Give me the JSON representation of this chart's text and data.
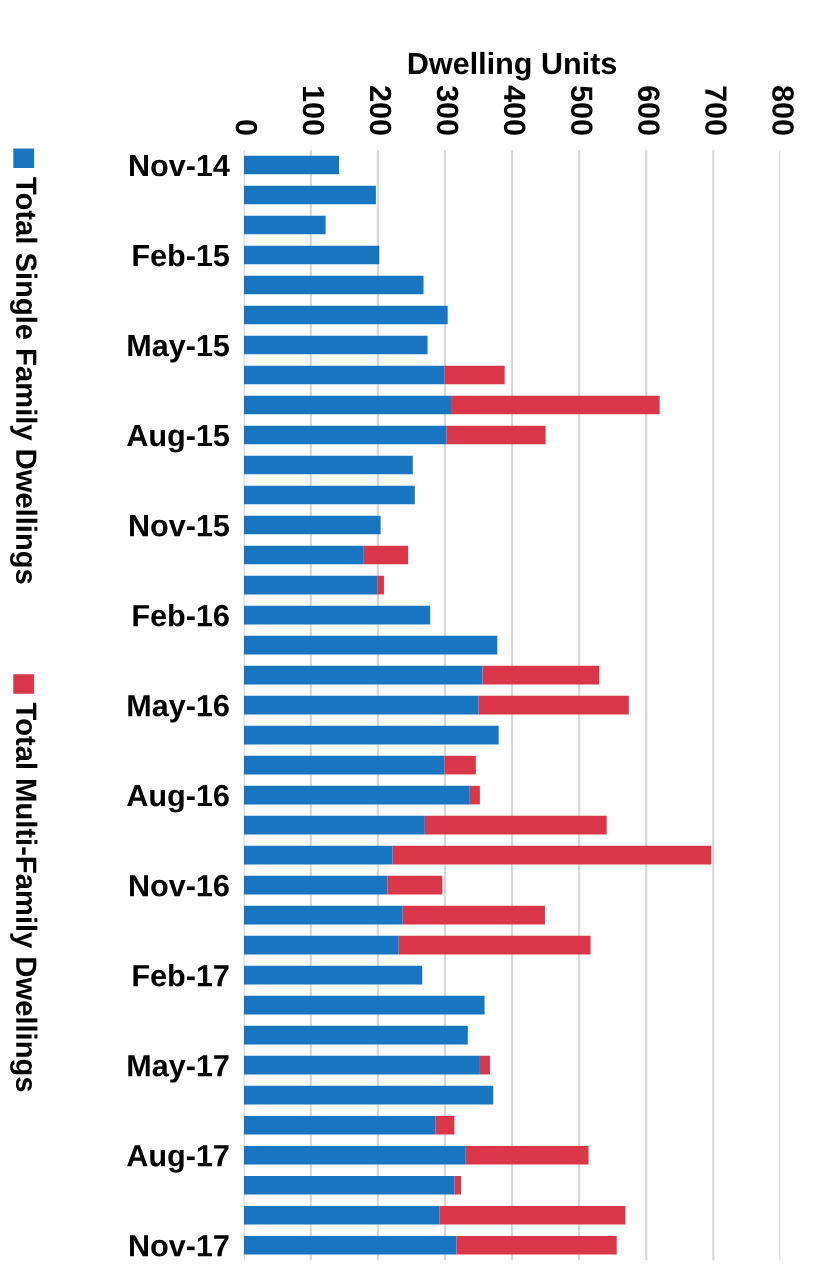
{
  "chart_data": {
    "type": "bar",
    "orientation": "horizontal",
    "stacked": true,
    "xlabel": "Dwelling Units",
    "categories": [
      "Nov-14",
      null,
      null,
      "Feb-15",
      null,
      null,
      "May-15",
      null,
      null,
      "Aug-15",
      null,
      null,
      "Nov-15",
      null,
      null,
      "Feb-16",
      null,
      null,
      "May-16",
      null,
      null,
      "Aug-16",
      null,
      null,
      "Nov-16",
      null,
      null,
      "Feb-17",
      null,
      null,
      "May-17",
      null,
      null,
      "Aug-17",
      null,
      null,
      "Nov-17"
    ],
    "series": [
      {
        "name": "Total Single Family Dwellings",
        "color": "#1a75c0",
        "values": [
          142,
          197,
          122,
          202,
          268,
          304,
          274,
          299,
          309,
          302,
          252,
          255,
          204,
          179,
          199,
          278,
          378,
          356,
          350,
          380,
          299,
          337,
          270,
          222,
          214,
          237,
          231,
          266,
          359,
          334,
          352,
          372,
          286,
          331,
          314,
          292,
          317
        ]
      },
      {
        "name": "Total Multi-Family Dwellings",
        "color": "#d9364a",
        "values": [
          0,
          0,
          0,
          0,
          0,
          0,
          0,
          90,
          311,
          148,
          0,
          0,
          0,
          66,
          10,
          0,
          0,
          174,
          224,
          0,
          47,
          15,
          271,
          475,
          82,
          212,
          286,
          0,
          0,
          0,
          15,
          0,
          28,
          183,
          10,
          277,
          239
        ]
      }
    ],
    "xlim": [
      0,
      800
    ],
    "xticks": [
      0,
      100,
      200,
      300,
      400,
      500,
      600,
      700,
      800
    ],
    "grid": "x",
    "legend": "left"
  }
}
